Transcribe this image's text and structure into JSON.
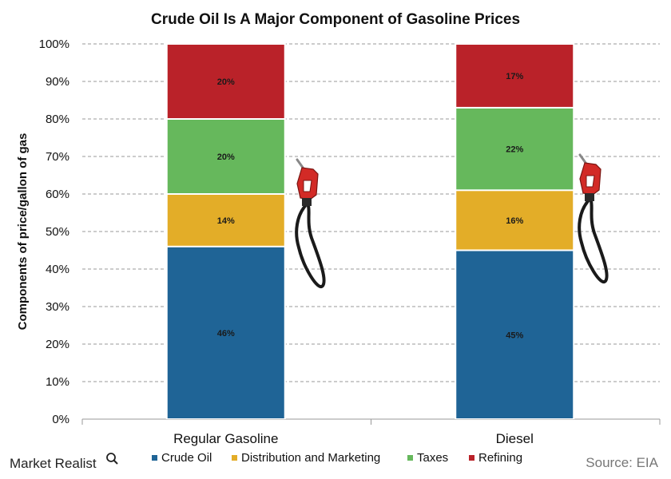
{
  "brand": {
    "name": "Market Realist"
  },
  "source": "Source: EIA",
  "chart_data": {
    "type": "bar",
    "stacked": true,
    "title": "Crude Oil Is A Major Component of Gasoline Prices",
    "ylabel": "Components of price/gallon of gas",
    "xlabel": "",
    "ylim": [
      0,
      100
    ],
    "yticks": [
      "0%",
      "10%",
      "20%",
      "30%",
      "40%",
      "50%",
      "60%",
      "70%",
      "80%",
      "90%",
      "100%"
    ],
    "grid": true,
    "legend_position": "bottom",
    "categories": [
      "Regular Gasoline",
      "Diesel"
    ],
    "series": [
      {
        "name": "Crude Oil",
        "values": [
          46,
          45
        ],
        "labels": [
          "46%",
          "45%"
        ],
        "color": "#1f6496"
      },
      {
        "name": "Distribution and Marketing",
        "values": [
          14,
          16
        ],
        "labels": [
          "14%",
          "16%"
        ],
        "color": "#e3ad28"
      },
      {
        "name": "Taxes",
        "values": [
          20,
          22
        ],
        "labels": [
          "20%",
          "22%"
        ],
        "color": "#66b85c"
      },
      {
        "name": "Refining",
        "values": [
          20,
          17
        ],
        "labels": [
          "20%",
          "17%"
        ],
        "color": "#ba2229"
      }
    ]
  }
}
